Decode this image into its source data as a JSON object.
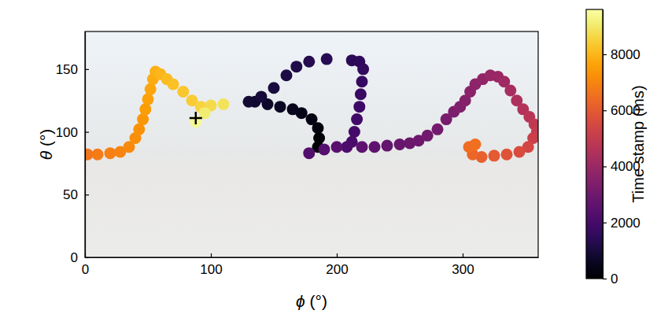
{
  "chart_data": {
    "type": "scatter",
    "x_label": "ϕ (°)",
    "y_label": "θ (°)",
    "xlim": [
      0,
      360
    ],
    "xticks": [
      0,
      100,
      200,
      300
    ],
    "ylim": [
      0,
      180
    ],
    "yticks": [
      0,
      50,
      100,
      150
    ],
    "x": [
      185,
      186,
      185,
      180,
      172,
      165,
      155,
      145,
      135,
      130,
      140,
      150,
      160,
      168,
      178,
      192,
      212,
      218,
      221,
      220,
      219,
      218,
      216,
      214,
      212,
      208,
      178,
      190,
      200,
      220,
      230,
      240,
      250,
      258,
      265,
      272,
      280,
      287,
      293,
      298,
      302,
      306,
      310,
      316,
      322,
      328,
      333,
      338,
      343,
      348,
      353,
      357,
      359,
      356,
      352,
      345,
      335,
      325,
      315,
      308,
      305,
      310,
      2,
      10,
      20,
      28,
      35,
      40,
      43,
      46,
      48,
      50,
      52,
      54,
      56,
      60,
      65,
      70,
      78,
      85,
      92,
      100,
      110,
      95,
      88
    ],
    "y": [
      88,
      95,
      103,
      110,
      115,
      118,
      120,
      122,
      124,
      124,
      128,
      135,
      145,
      152,
      156,
      158,
      157,
      156,
      150,
      140,
      130,
      120,
      110,
      100,
      92,
      88,
      83,
      86,
      88,
      88,
      88,
      89,
      90,
      91,
      93,
      97,
      102,
      110,
      116,
      120,
      125,
      132,
      138,
      142,
      145,
      144,
      140,
      133,
      125,
      118,
      112,
      106,
      100,
      95,
      88,
      84,
      82,
      81,
      80,
      82,
      88,
      90,
      82,
      82,
      83,
      84,
      88,
      95,
      102,
      110,
      118,
      126,
      134,
      142,
      148,
      146,
      142,
      138,
      132,
      125,
      120,
      121,
      122,
      115,
      108
    ],
    "time": [
      0,
      100,
      200,
      300,
      400,
      500,
      600,
      700,
      800,
      880,
      960,
      1040,
      1120,
      1200,
      1280,
      1360,
      1440,
      1520,
      1600,
      1680,
      1760,
      1840,
      1920,
      2000,
      2080,
      2160,
      2300,
      2380,
      2460,
      2540,
      2620,
      2700,
      2780,
      2860,
      2940,
      3020,
      3100,
      3200,
      3300,
      3400,
      3500,
      3600,
      3700,
      3800,
      3900,
      4000,
      4150,
      4300,
      4450,
      4600,
      4750,
      4900,
      5050,
      5200,
      5400,
      5600,
      5800,
      6000,
      6150,
      6300,
      6450,
      6550,
      6700,
      6800,
      6900,
      7000,
      7100,
      7200,
      7300,
      7400,
      7500,
      7600,
      7700,
      7800,
      7900,
      8000,
      8100,
      8200,
      8300,
      8400,
      8550,
      8700,
      8850,
      9100,
      9400
    ],
    "target": {
      "x": 88,
      "y": 111,
      "marker": "plus"
    },
    "colorbar": {
      "label": "Time stamp (ms)",
      "range": [
        0,
        9600
      ],
      "ticks": [
        0,
        2000,
        4000,
        6000,
        8000
      ]
    }
  }
}
